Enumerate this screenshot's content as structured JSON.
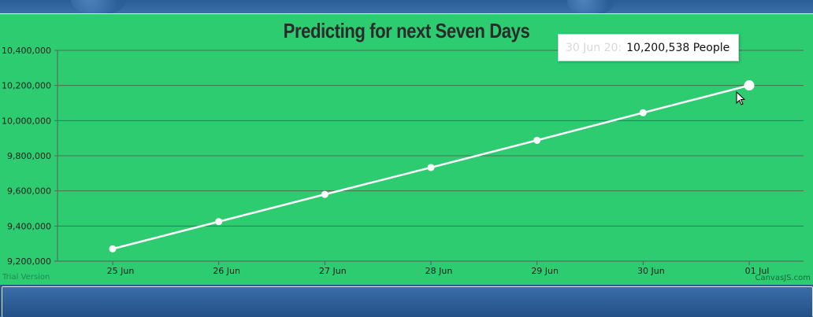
{
  "chart_data": {
    "type": "line",
    "title": "Predicting for next Seven Days",
    "x": [
      "25 Jun",
      "26 Jun",
      "27 Jun",
      "28 Jun",
      "29 Jun",
      "30 Jun",
      "01 Jul"
    ],
    "series": [
      {
        "values": [
          9270000,
          9425000,
          9580000,
          9733000,
          9888000,
          10045000,
          10200538
        ],
        "color": "#ffffff"
      }
    ],
    "y_ticks": [
      "9,200,000",
      "9,400,000",
      "9,600,000",
      "9,800,000",
      "10,000,000",
      "10,200,000",
      "10,400,000"
    ],
    "ylim": [
      9200000,
      10400000
    ],
    "grid": true,
    "background_color": "#2ecc71",
    "tooltip": {
      "label": "30 Jun 20:",
      "value": "10,200,538 People"
    },
    "credits": {
      "left": "Trial Version",
      "right": "CanvasJS.com"
    }
  }
}
